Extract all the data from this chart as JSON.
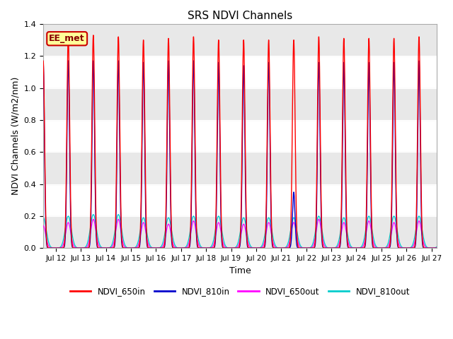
{
  "title": "SRS NDVI Channels",
  "xlabel": "Time",
  "ylabel": "NDVI Channels (W/m2/nm)",
  "ylim": [
    0,
    1.4
  ],
  "xlim_days": [
    11.5,
    27.2
  ],
  "colors": {
    "NDVI_650in": "#ff0000",
    "NDVI_810in": "#0000cc",
    "NDVI_650out": "#ff00ff",
    "NDVI_810out": "#00cccc"
  },
  "peak_650in": 1.32,
  "peak_810in": 1.17,
  "peak_650out": 0.17,
  "peak_810out": 0.205,
  "annotation_text": "EE_met",
  "annotation_bg": "#ffff99",
  "annotation_border": "#cc0000",
  "bg_color": "#ffffff",
  "tick_labels": [
    "Jul 12",
    "Jul 13",
    "Jul 14",
    "Jul 15",
    "Jul 16",
    "Jul 17",
    "Jul 18",
    "Jul 19",
    "Jul 20",
    "Jul 21",
    "Jul 22",
    "Jul 23",
    "Jul 24",
    "Jul 25",
    "Jul 26",
    "Jul 27"
  ],
  "tick_positions": [
    12,
    13,
    14,
    15,
    16,
    17,
    18,
    19,
    20,
    21,
    22,
    23,
    24,
    25,
    26,
    27
  ],
  "yticks": [
    0.0,
    0.2,
    0.4,
    0.6,
    0.8,
    1.0,
    1.2,
    1.4
  ],
  "gray_band_color": "#e8e8e8",
  "hgrid_color": "#ffffff"
}
